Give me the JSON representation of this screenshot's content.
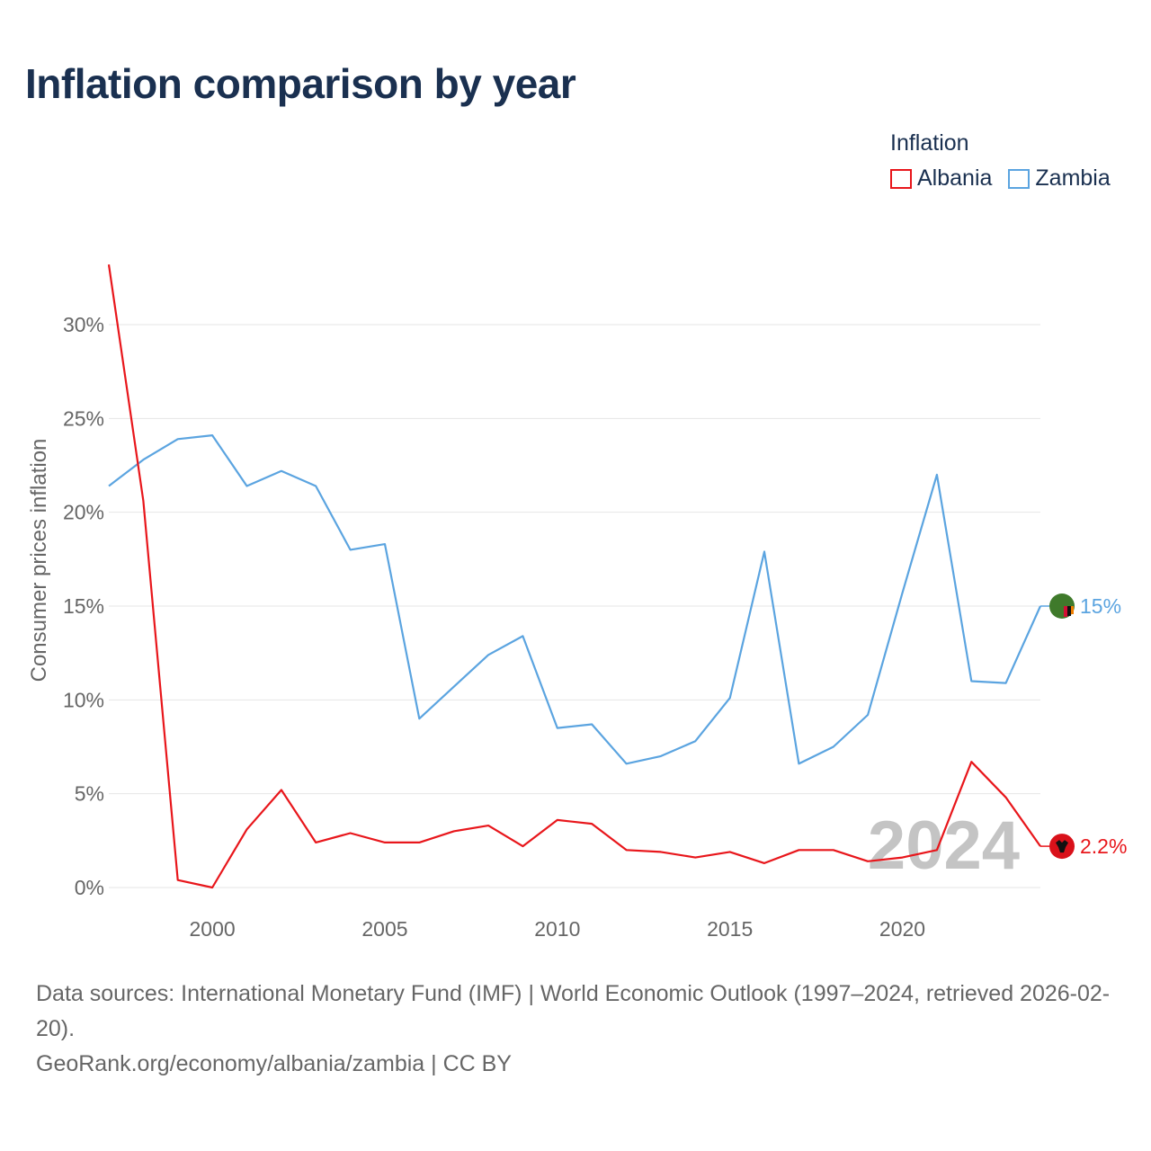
{
  "title": "Inflation comparison by year",
  "legend": {
    "title": "Inflation",
    "items": [
      {
        "name": "Albania",
        "color": "#e8161b"
      },
      {
        "name": "Zambia",
        "color": "#5ba4e0"
      }
    ]
  },
  "chart_data": {
    "type": "line",
    "title": "Inflation comparison by year",
    "xlabel": "",
    "ylabel": "Consumer prices inflation",
    "xlim": [
      1997,
      2024
    ],
    "ylim": [
      0,
      30
    ],
    "y_ticks": [
      0,
      5,
      10,
      15,
      20,
      25,
      30
    ],
    "y_tick_labels": [
      "0%",
      "5%",
      "10%",
      "15%",
      "20%",
      "25%",
      "30%"
    ],
    "x_ticks": [
      2000,
      2005,
      2010,
      2015,
      2020
    ],
    "x_tick_labels": [
      "2000",
      "2005",
      "2010",
      "2015",
      "2020"
    ],
    "grid": true,
    "x": [
      1997,
      1998,
      1999,
      2000,
      2001,
      2002,
      2003,
      2004,
      2005,
      2006,
      2007,
      2008,
      2009,
      2010,
      2011,
      2012,
      2013,
      2014,
      2015,
      2016,
      2017,
      2018,
      2019,
      2020,
      2021,
      2022,
      2023,
      2024
    ],
    "series": [
      {
        "name": "Albania",
        "color": "#e8161b",
        "values": [
          33.2,
          20.6,
          0.4,
          0.0,
          3.1,
          5.2,
          2.4,
          2.9,
          2.4,
          2.4,
          3.0,
          3.3,
          2.2,
          3.6,
          3.4,
          2.0,
          1.9,
          1.6,
          1.9,
          1.3,
          2.0,
          2.0,
          1.4,
          1.6,
          2.0,
          6.7,
          4.8,
          2.2
        ],
        "end_label": "2.2%"
      },
      {
        "name": "Zambia",
        "color": "#5ba4e0",
        "values": [
          21.4,
          22.8,
          23.9,
          24.1,
          21.4,
          22.2,
          21.4,
          18.0,
          18.3,
          9.0,
          10.7,
          12.4,
          13.4,
          8.5,
          8.7,
          6.6,
          7.0,
          7.8,
          10.1,
          17.9,
          6.6,
          7.5,
          9.2,
          15.7,
          22.0,
          11.0,
          10.9,
          15.0
        ],
        "end_label": "15%"
      }
    ],
    "year_watermark": "2024"
  },
  "footer": {
    "sources": "Data sources: International Monetary Fund (IMF) | World Economic Outlook (1997–2024, retrieved 2026-02-20).",
    "credit": "GeoRank.org/economy/albania/zambia | CC BY"
  }
}
